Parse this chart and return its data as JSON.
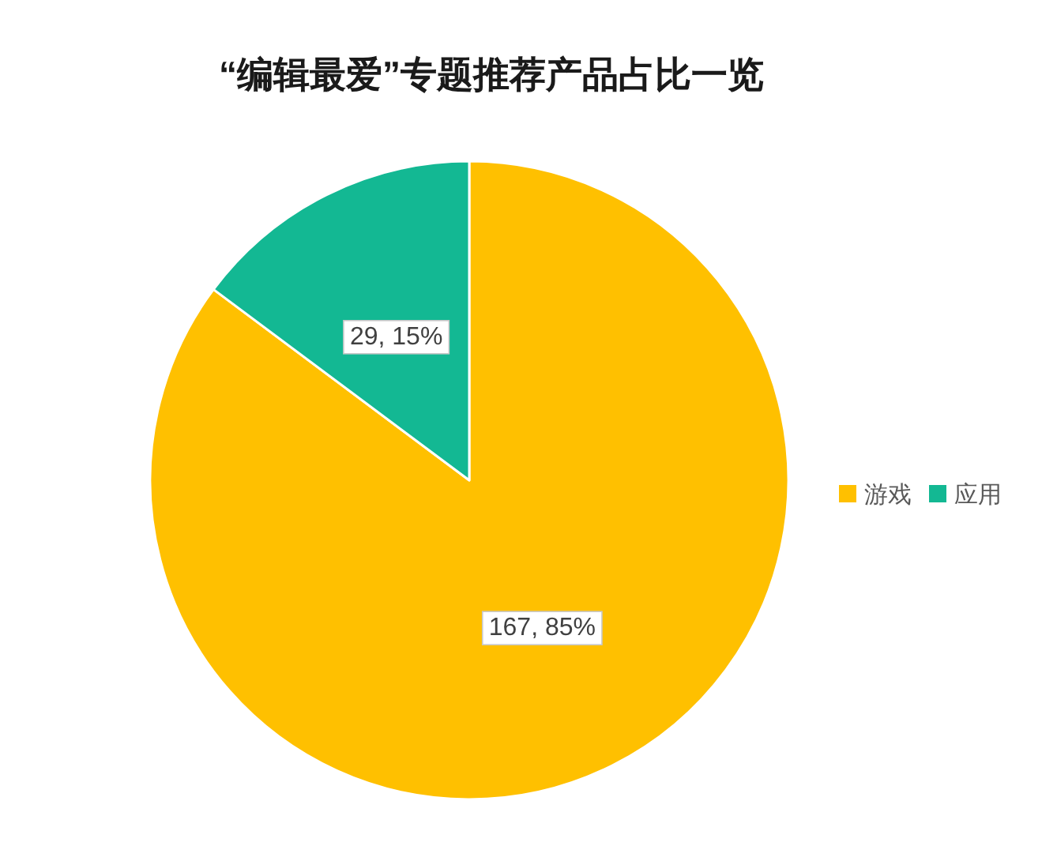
{
  "chart_data": {
    "type": "pie",
    "title": "“编辑最爱”专题推荐产品占比一览",
    "categories": [
      "游戏",
      "应用"
    ],
    "values": [
      167,
      29
    ],
    "colors": [
      "#ffc000",
      "#13b893"
    ],
    "value_labels": [
      "167, 85%",
      "29, 15%"
    ],
    "legend": "right"
  }
}
